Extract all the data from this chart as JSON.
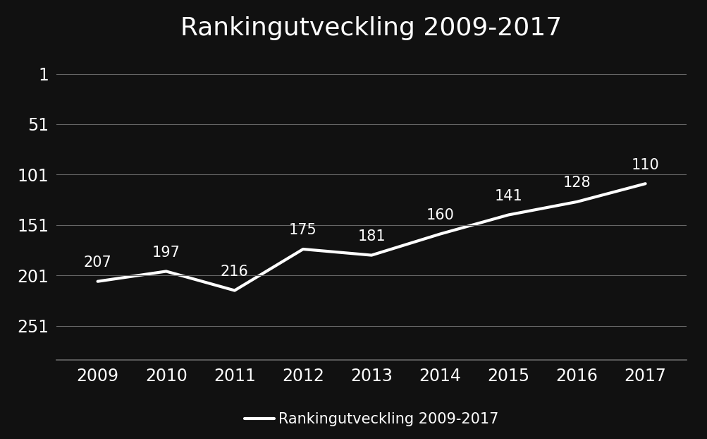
{
  "title": "Rankingutveckling 2009-2017",
  "years": [
    2009,
    2010,
    2011,
    2012,
    2013,
    2014,
    2015,
    2016,
    2017
  ],
  "values": [
    207,
    197,
    216,
    175,
    181,
    160,
    141,
    128,
    110
  ],
  "line_color": "#ffffff",
  "background_color": "#111111",
  "text_color": "#ffffff",
  "grid_color": "#666666",
  "legend_label": "Rankingutveckling 2009-2017",
  "yticks": [
    1,
    51,
    101,
    151,
    201,
    251
  ],
  "ylim_bottom": 285,
  "ylim_top": -20,
  "xlim_left": 2008.4,
  "xlim_right": 2017.6,
  "title_fontsize": 26,
  "tick_fontsize": 17,
  "annotation_fontsize": 15,
  "legend_fontsize": 15,
  "line_width": 3
}
